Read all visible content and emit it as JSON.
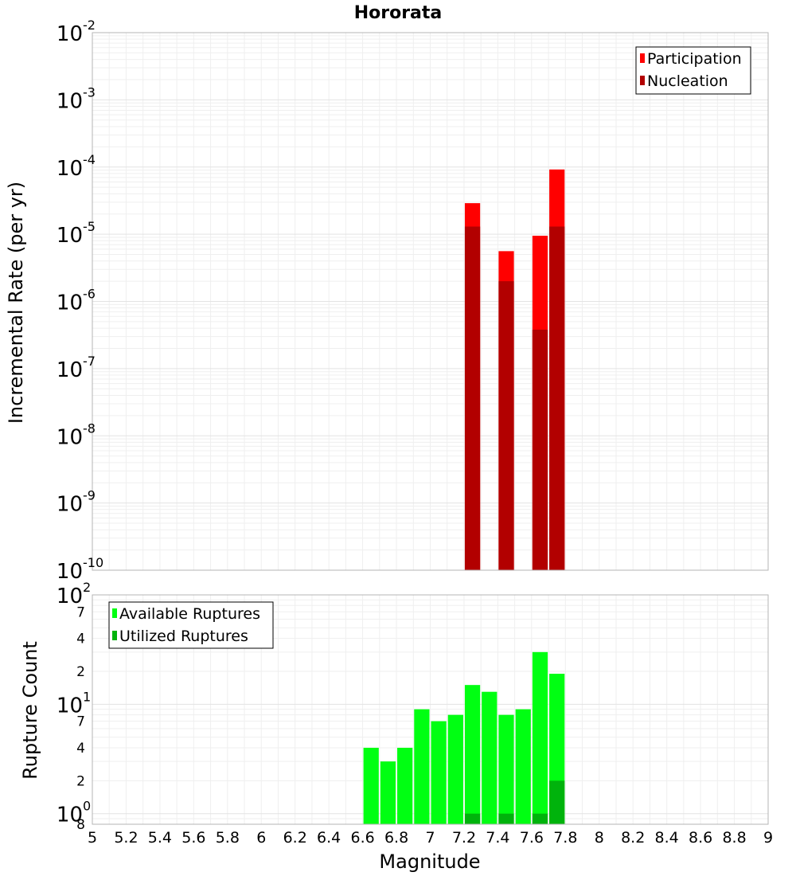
{
  "title": "Hororata",
  "colors": {
    "participation": "#ff0000",
    "nucleation": "#b20000",
    "available": "#00ff12",
    "utilized": "#00b30c",
    "bar_outline": "#ffffff",
    "grid": "#e3e3e3",
    "frame": "#b4b4b4"
  },
  "chart_data": [
    {
      "type": "bar",
      "name": "rate-panel",
      "title": "Hororata",
      "xlabel": "Magnitude",
      "ylabel": "Incremental Rate (per yr)",
      "yscale": "log",
      "xlim": [
        5,
        9
      ],
      "ylim": [
        1e-10,
        0.01
      ],
      "bar_width": 0.1,
      "y_major_ticks": [
        {
          "base": "10",
          "exp": "-10",
          "value": 1e-10
        },
        {
          "base": "10",
          "exp": "-9",
          "value": 1e-09
        },
        {
          "base": "10",
          "exp": "-8",
          "value": 1e-08
        },
        {
          "base": "10",
          "exp": "-7",
          "value": 1e-07
        },
        {
          "base": "10",
          "exp": "-6",
          "value": 1e-06
        },
        {
          "base": "10",
          "exp": "-5",
          "value": 1e-05
        },
        {
          "base": "10",
          "exp": "-4",
          "value": 0.0001
        },
        {
          "base": "10",
          "exp": "-3",
          "value": 0.001
        },
        {
          "base": "10",
          "exp": "-2",
          "value": 0.01
        }
      ],
      "legend": {
        "position": "top-right",
        "entries": [
          "Participation",
          "Nucleation"
        ]
      },
      "series": [
        {
          "name": "Participation",
          "x": [
            7.25,
            7.45,
            7.65,
            7.75
          ],
          "values": [
            2.9e-05,
            5.6e-06,
            9.5e-06,
            9.2e-05
          ]
        },
        {
          "name": "Nucleation",
          "x": [
            7.25,
            7.45,
            7.65,
            7.75
          ],
          "values": [
            1.3e-05,
            2e-06,
            3.8e-07,
            1.3e-05
          ]
        }
      ]
    },
    {
      "type": "bar",
      "name": "count-panel",
      "xlabel": "Magnitude",
      "ylabel": "Rupture Count",
      "yscale": "log",
      "xlim": [
        5,
        9
      ],
      "ylim": [
        0.8,
        100
      ],
      "bar_width": 0.1,
      "x_ticks": [
        "5",
        "5.2",
        "5.4",
        "5.6",
        "5.8",
        "6",
        "6.2",
        "6.4",
        "6.6",
        "6.8",
        "7",
        "7.2",
        "7.4",
        "7.6",
        "7.8",
        "8",
        "8.2",
        "8.4",
        "8.6",
        "8.8",
        "9"
      ],
      "y_major_ticks": [
        {
          "base": "10",
          "exp": "0",
          "value": 1
        },
        {
          "base": "10",
          "exp": "1",
          "value": 10
        },
        {
          "base": "10",
          "exp": "2",
          "value": 100
        }
      ],
      "y_minor_tick_labels": [
        {
          "label": "8",
          "value": 0.8
        },
        {
          "label": "2",
          "value": 2
        },
        {
          "label": "4",
          "value": 4
        },
        {
          "label": "7",
          "value": 7
        },
        {
          "label": "2",
          "value": 20
        },
        {
          "label": "4",
          "value": 40
        },
        {
          "label": "7",
          "value": 70
        }
      ],
      "legend": {
        "position": "top-left",
        "entries": [
          "Available Ruptures",
          "Utilized Ruptures"
        ]
      },
      "series": [
        {
          "name": "Available Ruptures",
          "x": [
            6.65,
            6.75,
            6.85,
            6.95,
            7.05,
            7.15,
            7.25,
            7.35,
            7.45,
            7.55,
            7.65,
            7.75
          ],
          "values": [
            4,
            3,
            4,
            9,
            7,
            8,
            15,
            13,
            8,
            9,
            30,
            19
          ]
        },
        {
          "name": "Utilized Ruptures",
          "x": [
            7.25,
            7.45,
            7.65,
            7.75
          ],
          "values": [
            1,
            1,
            1,
            2
          ]
        }
      ]
    }
  ]
}
